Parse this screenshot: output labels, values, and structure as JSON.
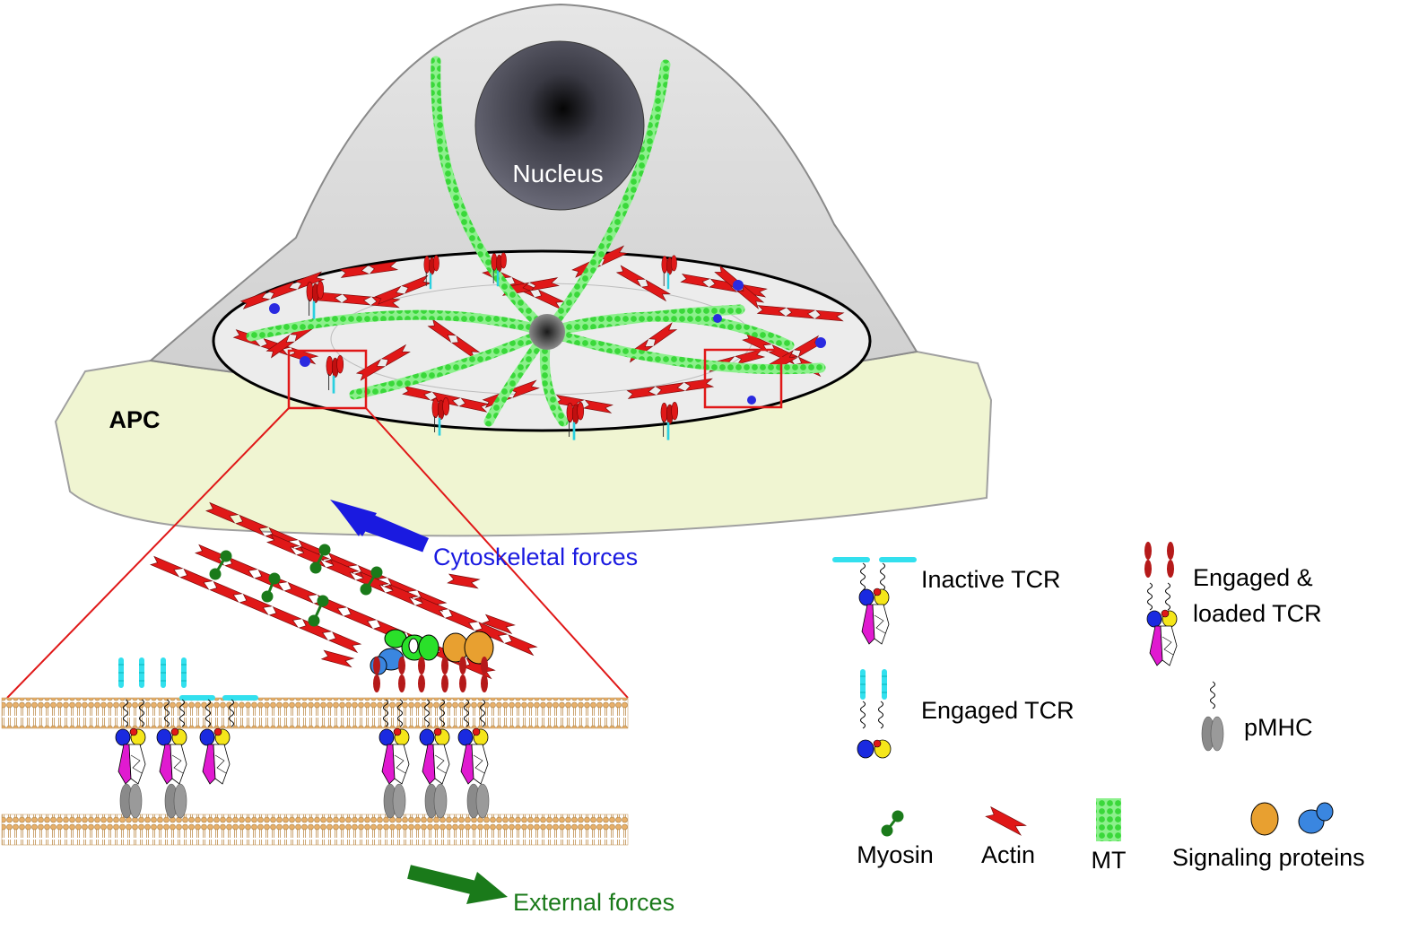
{
  "labels": {
    "nucleus": "Nucleus",
    "apc": "APC",
    "cytoskeletal_forces": "Cytoskeletal forces",
    "external_forces": "External forces"
  },
  "legend": {
    "inactive_tcr": "Inactive TCR",
    "engaged_loaded_tcr_line1": "Engaged &",
    "engaged_loaded_tcr_line2": "loaded TCR",
    "engaged_tcr": "Engaged TCR",
    "pmhc": "pMHC",
    "myosin": "Myosin",
    "actin": "Actin",
    "mt": "MT",
    "signaling_proteins": "Signaling proteins"
  },
  "colors": {
    "cell_fill": "#d9d9d9",
    "apc_fill": "#f0f5d2",
    "nucleus": "#5a5a6a",
    "actin": "#e01818",
    "microtubule": "#5ae05a",
    "myosin": "#1a7a1a",
    "membrane": "#e8b880",
    "tcr_blue": "#1a2ae0",
    "tcr_yellow": "#f5e61a",
    "tcr_magenta": "#e01ad0",
    "cd3_cyan": "#33e0ee",
    "engaged_red": "#b51a1a",
    "pmhc_gray": "#8a8a8a",
    "signal_orange": "#e8a030",
    "signal_blue": "#3a86e0",
    "signal_green": "#2ae02a",
    "cytoskeletal_arrow": "#1a1ae0",
    "external_arrow": "#1a7a1a",
    "zoom_box": "#e01818"
  }
}
